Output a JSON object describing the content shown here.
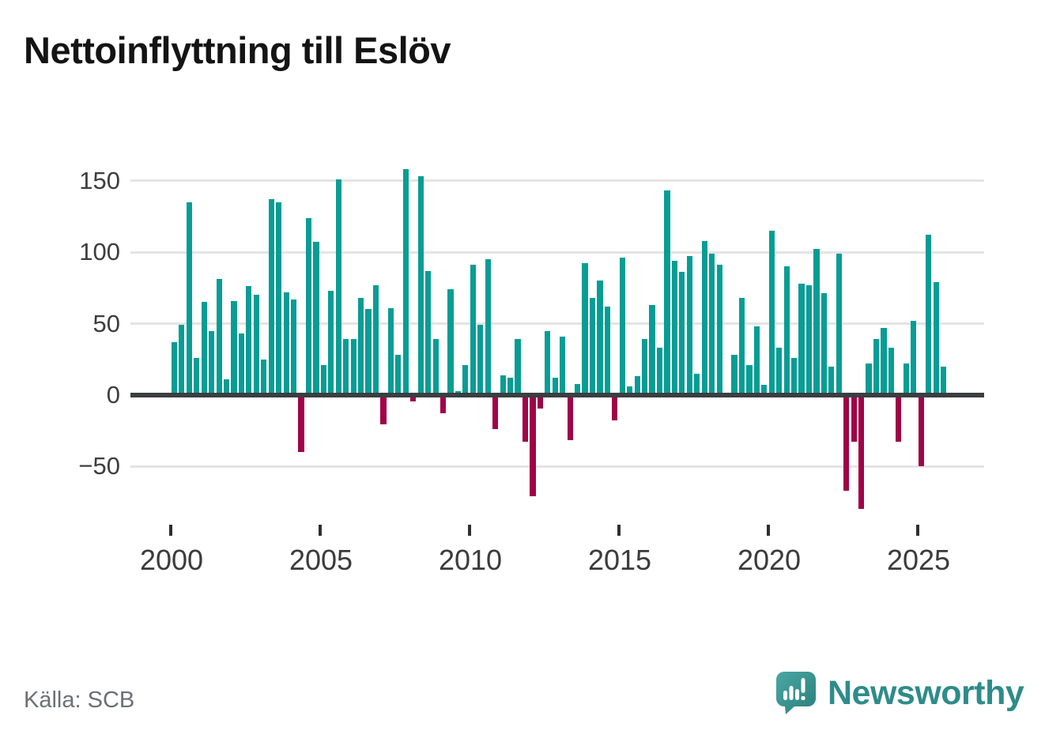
{
  "title": "Nettoinflyttning till Eslöv",
  "source": "Källa: SCB",
  "branding": {
    "logo_text": "Newsworthy",
    "brand_color": "#2e8c8a"
  },
  "chart_data": {
    "type": "bar",
    "title": "Nettoinflyttning till Eslöv",
    "frequency": "quarterly",
    "start_year": 2000,
    "start_quarter": 1,
    "values": [
      37,
      49,
      135,
      26,
      65,
      45,
      81,
      11,
      66,
      43,
      76,
      70,
      25,
      137,
      135,
      72,
      67,
      -38,
      124,
      107,
      21,
      73,
      151,
      39,
      39,
      68,
      60,
      77,
      -19,
      61,
      28,
      158,
      -3,
      153,
      87,
      39,
      -11,
      74,
      3,
      21,
      91,
      49,
      95,
      -22,
      14,
      12,
      39,
      -31,
      -69,
      -8,
      45,
      12,
      41,
      -30,
      8,
      92,
      68,
      80,
      62,
      -16,
      96,
      6,
      13,
      39,
      63,
      33,
      143,
      94,
      86,
      97,
      15,
      108,
      99,
      91,
      0,
      28,
      68,
      21,
      48,
      7,
      115,
      33,
      90,
      26,
      78,
      77,
      102,
      71,
      20,
      99,
      -65,
      -31,
      -78,
      22,
      39,
      47,
      33,
      -31,
      22,
      52,
      -48,
      112,
      79,
      20
    ],
    "x_tick_labels": [
      "2000",
      "2005",
      "2010",
      "2015",
      "2020",
      "2025"
    ],
    "x_tick_years": [
      2000,
      2005,
      2010,
      2015,
      2020,
      2025
    ],
    "y_tick_labels": [
      "150",
      "100",
      "50",
      "0",
      "−50"
    ],
    "y_ticks": [
      150,
      100,
      50,
      0,
      -50
    ],
    "ylim": [
      -85,
      165
    ],
    "grid": "horizontal",
    "legend": "none",
    "positive_color": "#089d94",
    "negative_color": "#a00347",
    "zero_line_color": "#3a3e41",
    "gridline_color": "#e4e4e4"
  }
}
